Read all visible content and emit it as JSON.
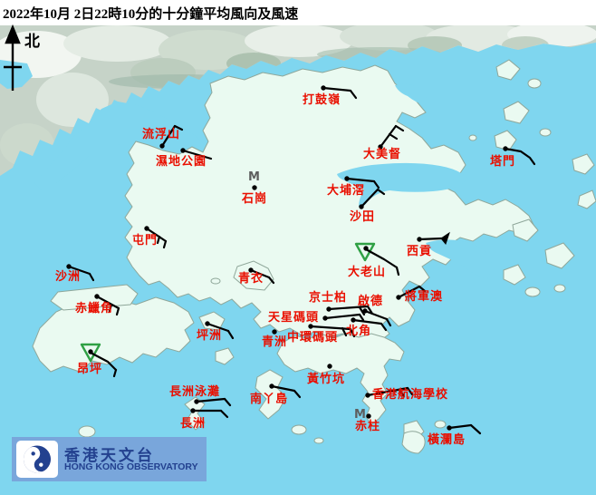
{
  "title": "2022年10月 2日22時10分的十分鐘平均風向及風速",
  "north_label": "北",
  "m_label": "M",
  "logo": {
    "chinese": "香港天文台",
    "english": "HONG KONG OBSERVATORY"
  },
  "colors": {
    "sea": "#7fd6ef",
    "land": "#eafaf1",
    "mainland": "#c6d3c8",
    "coast": "#8fa79a",
    "station_label": "#e90f00",
    "calm_triangle": "#2fa044",
    "banner": "#79a6db",
    "navy": "#23418f",
    "m_marker": "#5e5e5e"
  },
  "m_markers": [
    [
      274,
      189
    ],
    [
      391,
      451
    ]
  ],
  "stations": [
    {
      "name": "打鼓嶺",
      "label": [
        334,
        104
      ],
      "dot": [
        357,
        97
      ],
      "barb": [
        [
          357,
          97
        ],
        [
          387,
          100
        ]
      ],
      "ticks": [
        [
          [
            387,
            100
          ],
          [
            393,
            108
          ]
        ]
      ]
    },
    {
      "name": "流浮山",
      "label": [
        157,
        142
      ],
      "dot": [
        179,
        161
      ],
      "barb": [
        [
          179,
          161
        ],
        [
          193,
          139
        ]
      ],
      "ticks": [
        [
          [
            193,
            139
          ],
          [
            201,
            143
          ]
        ]
      ]
    },
    {
      "name": "濕地公園",
      "label": [
        172,
        172
      ],
      "dot": [
        202,
        166
      ],
      "barb": [
        [
          202,
          166
        ],
        [
          233,
          175
        ]
      ]
    },
    {
      "name": "石崗",
      "label": [
        267,
        213
      ],
      "dot": [
        281,
        207
      ]
    },
    {
      "name": "大美督",
      "label": [
        401,
        164
      ],
      "dot": [
        420,
        162
      ],
      "barb": [
        [
          420,
          162
        ],
        [
          437,
          139
        ]
      ],
      "ticks": [
        [
          [
            437,
            139
          ],
          [
            445,
            144
          ]
        ],
        [
          [
            430,
            148
          ],
          [
            438,
            153
          ]
        ]
      ]
    },
    {
      "name": "大埔滘",
      "label": [
        361,
        204
      ],
      "dot": [
        383,
        197
      ],
      "barb": [
        [
          383,
          197
        ],
        [
          413,
          200
        ]
      ],
      "ticks": [
        [
          [
            413,
            200
          ],
          [
            418,
            207
          ]
        ]
      ]
    },
    {
      "name": "沙田",
      "label": [
        386,
        233
      ],
      "dot": [
        399,
        228
      ],
      "barb": [
        [
          399,
          228
        ],
        [
          417,
          209
        ]
      ],
      "ticks": [
        [
          [
            417,
            209
          ],
          [
            424,
            214
          ]
        ]
      ]
    },
    {
      "name": "塔門",
      "label": [
        541,
        172
      ],
      "dot": [
        558,
        164
      ],
      "barb": [
        [
          558,
          164
        ],
        [
          575,
          167
        ],
        [
          585,
          174
        ],
        [
          590,
          181
        ]
      ]
    },
    {
      "name": "屯門",
      "label": [
        146,
        259
      ],
      "dot": [
        162,
        252
      ],
      "barb": [
        [
          162,
          252
        ],
        [
          183,
          266
        ]
      ],
      "ticks": [
        [
          [
            183,
            266
          ],
          [
            181,
            273
          ]
        ],
        [
          [
            176,
            261
          ],
          [
            174,
            268
          ]
        ]
      ]
    },
    {
      "name": "西貢",
      "label": [
        449,
        271
      ],
      "dot": [
        463,
        264
      ],
      "barb": [
        [
          463,
          264
        ],
        [
          488,
          263
        ]
      ],
      "flag": [
        [
          487,
          263
        ],
        [
          496,
          257
        ],
        [
          492,
          269
        ]
      ]
    },
    {
      "name": "沙洲",
      "label": [
        61,
        299
      ],
      "dot": [
        76,
        294
      ],
      "barb": [
        [
          76,
          294
        ],
        [
          99,
          302
        ]
      ],
      "ticks": [
        [
          [
            99,
            302
          ],
          [
            103,
            309
          ]
        ]
      ]
    },
    {
      "name": "大老山",
      "label": [
        384,
        294
      ],
      "dot": [
        404,
        274
      ],
      "tri": [
        [
          393,
          269
        ],
        [
          413,
          269
        ],
        [
          403,
          287
        ]
      ],
      "barb": [
        [
          404,
          275
        ],
        [
          424,
          286
        ],
        [
          438,
          295
        ]
      ],
      "ticks": [
        [
          [
            438,
            295
          ],
          [
            440,
            303
          ]
        ]
      ]
    },
    {
      "name": "青衣",
      "label": [
        263,
        301
      ],
      "dot": [
        277,
        298
      ],
      "barb": [
        [
          277,
          298
        ],
        [
          297,
          306
        ]
      ],
      "ticks": [
        [
          [
            297,
            306
          ],
          [
            302,
            312
          ]
        ]
      ]
    },
    {
      "name": "赤鱲角",
      "label": [
        83,
        334
      ],
      "dot": [
        107,
        327
      ],
      "barb": [
        [
          107,
          327
        ],
        [
          131,
          340
        ]
      ],
      "ticks": [
        [
          [
            131,
            340
          ],
          [
            129,
            347
          ]
        ],
        [
          [
            123,
            336
          ],
          [
            121,
            343
          ]
        ]
      ]
    },
    {
      "name": "京士柏",
      "label": [
        341,
        322
      ],
      "dot": [
        363,
        341
      ],
      "barb": [
        [
          363,
          341
        ],
        [
          406,
          338
        ]
      ],
      "ticks": [
        [
          [
            406,
            338
          ],
          [
            411,
            346
          ]
        ],
        [
          [
            397,
            339
          ],
          [
            402,
            347
          ]
        ]
      ]
    },
    {
      "name": "啟德",
      "label": [
        395,
        326
      ],
      "dot": [
        403,
        343
      ],
      "barb": [
        [
          403,
          343
        ],
        [
          427,
          352
        ]
      ],
      "ticks": [
        [
          [
            427,
            352
          ],
          [
            431,
            359
          ]
        ]
      ]
    },
    {
      "name": "將軍澳",
      "label": [
        447,
        321
      ],
      "dot": [
        440,
        328
      ],
      "barb": [
        [
          440,
          328
        ],
        [
          463,
          316
        ]
      ],
      "ticks": [
        [
          [
            463,
            316
          ],
          [
            469,
            321
          ]
        ]
      ]
    },
    {
      "name": "天星碼頭",
      "label": [
        296,
        344
      ],
      "dot": [
        359,
        351
      ],
      "barb": [
        [
          359,
          351
        ],
        [
          397,
          347
        ]
      ],
      "ticks": [
        [
          [
            397,
            347
          ],
          [
            401,
            353
          ]
        ]
      ]
    },
    {
      "name": "中環碼頭",
      "label": [
        317,
        366
      ],
      "dot": [
        343,
        360
      ],
      "barb": [
        [
          343,
          360
        ],
        [
          387,
          363
        ]
      ],
      "ticks": [
        [
          [
            387,
            363
          ],
          [
            391,
            371
          ]
        ],
        [
          [
            378,
            362
          ],
          [
            382,
            370
          ]
        ]
      ]
    },
    {
      "name": "北角",
      "label": [
        382,
        359
      ],
      "dot": [
        390,
        353
      ],
      "barb": [
        [
          390,
          353
        ],
        [
          421,
          357
        ]
      ],
      "ticks": [
        [
          [
            421,
            357
          ],
          [
            426,
            364
          ]
        ]
      ]
    },
    {
      "name": "青洲",
      "label": [
        289,
        371
      ],
      "dot": [
        303,
        366
      ]
    },
    {
      "name": "坪洲",
      "label": [
        217,
        364
      ],
      "dot": [
        229,
        357
      ],
      "barb": [
        [
          229,
          357
        ],
        [
          252,
          365
        ]
      ],
      "ticks": [
        [
          [
            252,
            365
          ],
          [
            257,
            373
          ]
        ]
      ]
    },
    {
      "name": "昂坪",
      "label": [
        85,
        401
      ],
      "dot": [
        100,
        388
      ],
      "tri": [
        [
          90,
          380
        ],
        [
          110,
          380
        ],
        [
          100,
          398
        ]
      ],
      "barb": [
        [
          100,
          389
        ],
        [
          119,
          399
        ],
        [
          128,
          408
        ]
      ],
      "ticks": [
        [
          [
            128,
            408
          ],
          [
            126,
            415
          ]
        ]
      ]
    },
    {
      "name": "黃竹坑",
      "label": [
        339,
        412
      ],
      "dot": [
        364,
        404
      ]
    },
    {
      "name": "長洲泳灘",
      "label": [
        187,
        426
      ],
      "dot": [
        217,
        443
      ],
      "barb": [
        [
          217,
          443
        ],
        [
          248,
          440
        ]
      ],
      "ticks": [
        [
          [
            248,
            440
          ],
          [
            254,
            447
          ]
        ]
      ]
    },
    {
      "name": "南丫島",
      "label": [
        276,
        434
      ],
      "dot": [
        300,
        426
      ],
      "barb": [
        [
          300,
          426
        ],
        [
          325,
          431
        ]
      ],
      "ticks": [
        [
          [
            325,
            431
          ],
          [
            331,
            438
          ]
        ]
      ]
    },
    {
      "name": "長洲",
      "label": [
        199,
        461
      ],
      "dot": [
        213,
        453
      ],
      "barb": [
        [
          213,
          453
        ],
        [
          244,
          453
        ]
      ],
      "ticks": [
        [
          [
            244,
            453
          ],
          [
            251,
            460
          ]
        ]
      ]
    },
    {
      "name": "香港航海學校",
      "label": [
        411,
        429
      ],
      "dot": [
        406,
        436
      ],
      "barb": [
        [
          406,
          436
        ],
        [
          450,
          428
        ]
      ],
      "ticks": [
        [
          [
            450,
            428
          ],
          [
            455,
            435
          ]
        ],
        [
          [
            441,
            430
          ],
          [
            446,
            437
          ]
        ]
      ]
    },
    {
      "name": "赤柱",
      "label": [
        392,
        464
      ],
      "dot": [
        407,
        459
      ]
    },
    {
      "name": "橫瀾島",
      "label": [
        472,
        479
      ],
      "dot": [
        496,
        472
      ],
      "barb": [
        [
          496,
          472
        ],
        [
          520,
          469
        ]
      ],
      "ticks": [
        [
          [
            520,
            469
          ],
          [
            530,
            478
          ]
        ]
      ]
    }
  ]
}
